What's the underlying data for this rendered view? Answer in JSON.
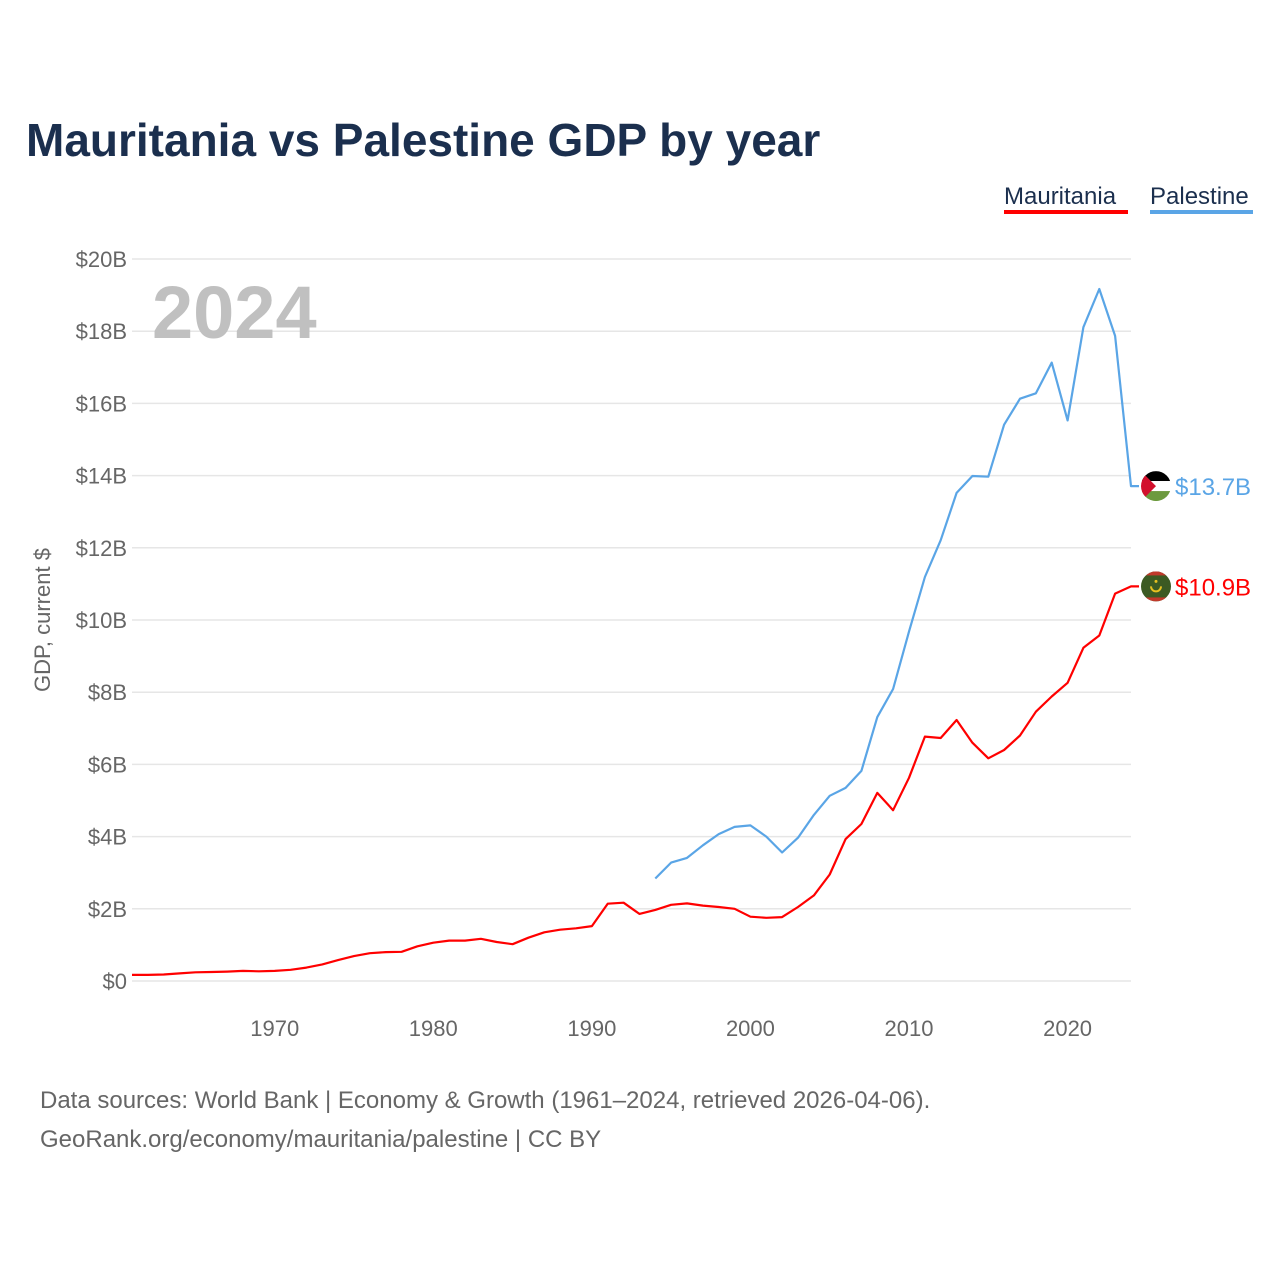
{
  "chart_data": {
    "type": "line",
    "title": "Mauritania vs Palestine GDP by year",
    "ylabel": "GDP, current $",
    "xlabel": "",
    "year_label": "2024",
    "ylim": [
      0,
      20
    ],
    "xlim": [
      1961,
      2024
    ],
    "grid": true,
    "legend_position": "top-right",
    "yticks": [
      {
        "v": 0,
        "label": "$0"
      },
      {
        "v": 2,
        "label": "$2B"
      },
      {
        "v": 4,
        "label": "$4B"
      },
      {
        "v": 6,
        "label": "$6B"
      },
      {
        "v": 8,
        "label": "$8B"
      },
      {
        "v": 10,
        "label": "$10B"
      },
      {
        "v": 12,
        "label": "$12B"
      },
      {
        "v": 14,
        "label": "$14B"
      },
      {
        "v": 16,
        "label": "$16B"
      },
      {
        "v": 18,
        "label": "$18B"
      },
      {
        "v": 20,
        "label": "$20B"
      }
    ],
    "xticks": [
      {
        "v": 1970,
        "label": "1970"
      },
      {
        "v": 1980,
        "label": "1980"
      },
      {
        "v": 1990,
        "label": "1990"
      },
      {
        "v": 2000,
        "label": "2000"
      },
      {
        "v": 2010,
        "label": "2010"
      },
      {
        "v": 2020,
        "label": "2020"
      }
    ],
    "series": [
      {
        "name": "Mauritania",
        "color": "#ff0000",
        "end_label": "$10.9B",
        "flag": "mauritania",
        "start": 1961,
        "values": [
          0.17,
          0.17,
          0.18,
          0.21,
          0.24,
          0.25,
          0.26,
          0.28,
          0.27,
          0.28,
          0.31,
          0.37,
          0.46,
          0.58,
          0.69,
          0.77,
          0.8,
          0.81,
          0.96,
          1.06,
          1.12,
          1.12,
          1.17,
          1.08,
          1.02,
          1.2,
          1.35,
          1.42,
          1.46,
          1.52,
          2.14,
          2.17,
          1.86,
          1.97,
          2.11,
          2.15,
          2.09,
          2.05,
          2.0,
          1.78,
          1.75,
          1.77,
          2.05,
          2.37,
          2.95,
          3.93,
          4.35,
          5.21,
          4.73,
          5.63,
          6.77,
          6.73,
          7.23,
          6.6,
          6.17,
          6.4,
          6.8,
          7.46,
          7.88,
          8.26,
          9.23,
          9.57,
          10.73,
          10.93
        ]
      },
      {
        "name": "Palestine",
        "color": "#5aa5e6",
        "end_label": "$13.7B",
        "flag": "palestine",
        "start": 1994,
        "values": [
          2.84,
          3.28,
          3.41,
          3.76,
          4.07,
          4.27,
          4.31,
          4.0,
          3.56,
          3.97,
          4.6,
          5.13,
          5.35,
          5.82,
          7.31,
          8.09,
          9.68,
          11.19,
          12.21,
          13.52,
          13.99,
          13.97,
          15.41,
          16.13,
          16.28,
          17.13,
          15.53,
          18.11,
          19.17,
          17.87,
          13.71
        ]
      }
    ]
  },
  "footer": {
    "line1": "Data sources: World Bank | Economy & Growth (1961–2024, retrieved 2026-04-06).",
    "line2": "GeoRank.org/economy/mauritania/palestine | CC BY"
  }
}
